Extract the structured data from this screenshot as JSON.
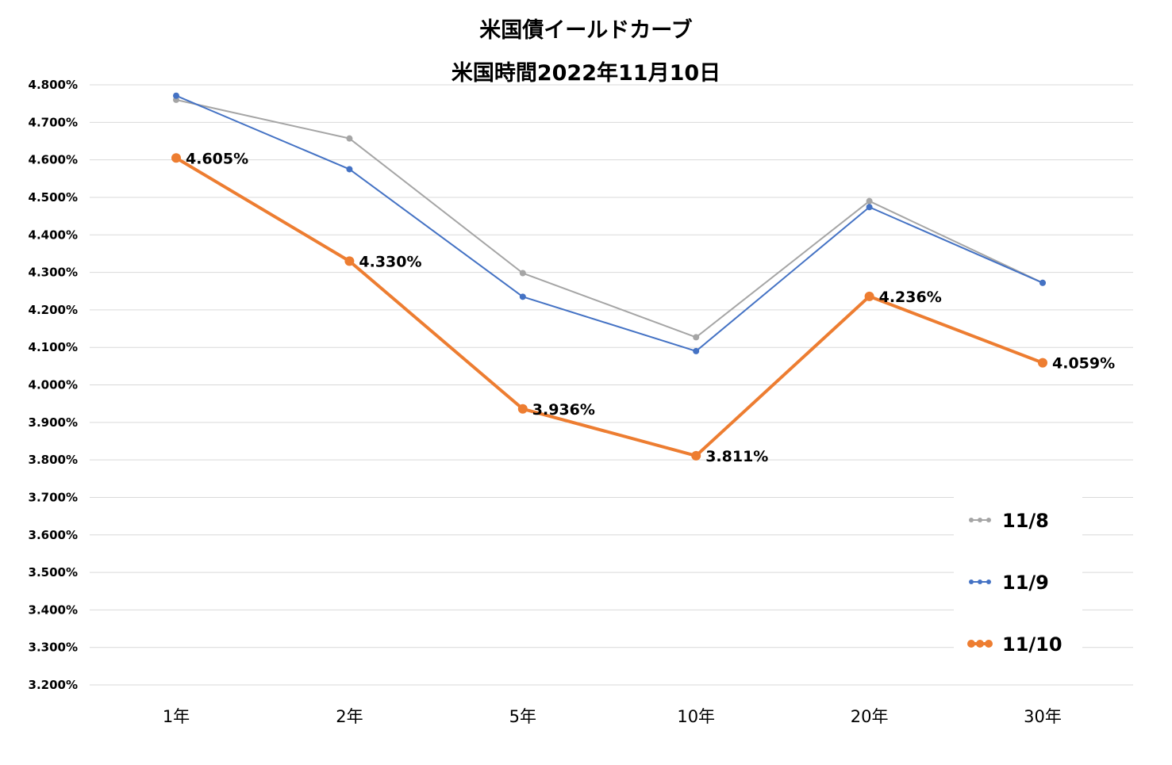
{
  "chart_data": {
    "type": "line",
    "title": "米国債イールドカーブ",
    "subtitle": "米国時間2022年11月10日",
    "categories": [
      "1年",
      "2年",
      "5年",
      "10年",
      "20年",
      "30年"
    ],
    "ylim": [
      3.2,
      4.8
    ],
    "ytick_step": 0.1,
    "ytick_labels": [
      "3.200%",
      "3.300%",
      "3.400%",
      "3.500%",
      "3.600%",
      "3.700%",
      "3.800%",
      "3.900%",
      "4.000%",
      "4.100%",
      "4.200%",
      "4.300%",
      "4.400%",
      "4.500%",
      "4.600%",
      "4.700%",
      "4.800%"
    ],
    "grid": true,
    "legend_position": "bottom-right",
    "series": [
      {
        "name": "11/8",
        "color": "#A5A5A5",
        "values": [
          4.76,
          4.657,
          4.298,
          4.127,
          4.49,
          4.272
        ]
      },
      {
        "name": "11/9",
        "color": "#4472C4",
        "values": [
          4.771,
          4.575,
          4.235,
          4.09,
          4.474,
          4.272
        ]
      },
      {
        "name": "11/10",
        "color": "#ED7D31",
        "values": [
          4.605,
          4.33,
          3.936,
          3.811,
          4.236,
          4.059
        ],
        "data_labels": [
          "4.605%",
          "4.330%",
          "3.936%",
          "3.811%",
          "4.236%",
          "4.059%"
        ]
      }
    ]
  }
}
